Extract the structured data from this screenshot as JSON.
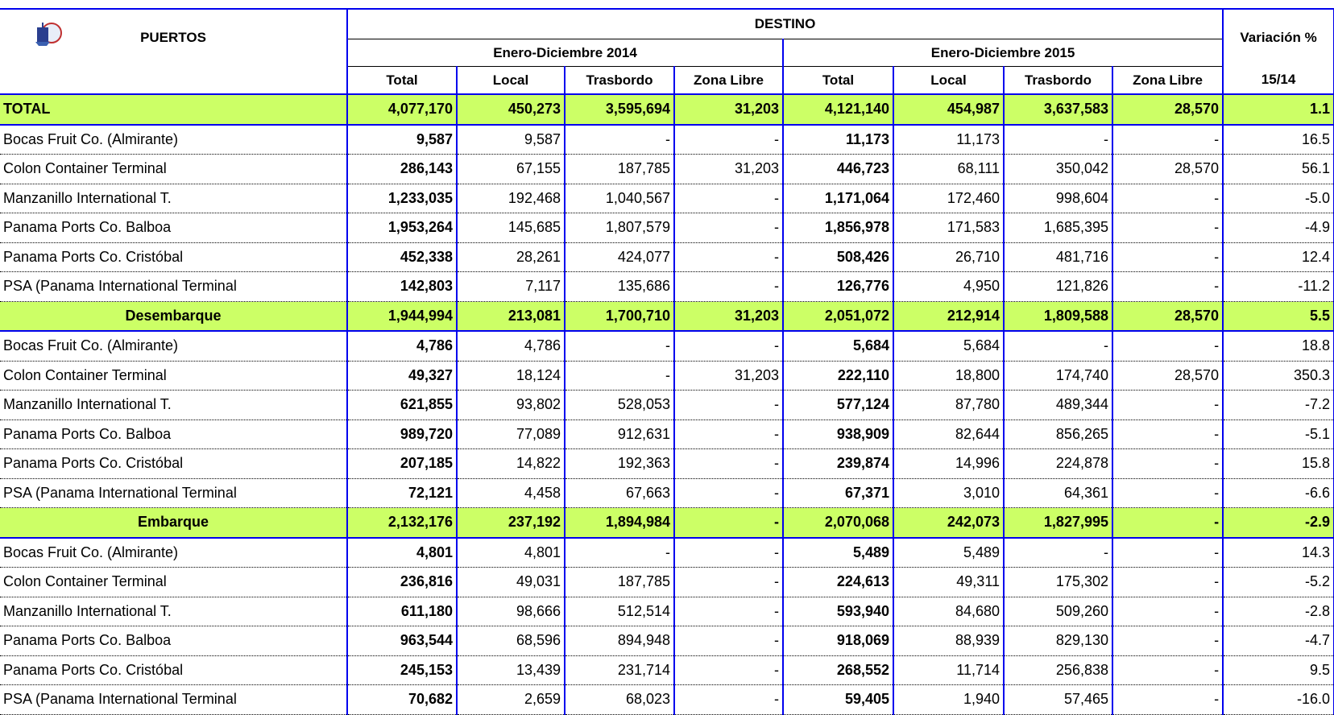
{
  "header": {
    "puertos": "PUERTOS",
    "destino": "DESTINO",
    "period_a": "Enero-Diciembre 2014",
    "period_b": "Enero-Diciembre 2015",
    "variacion": "Variación %",
    "variacion_sub": "15/14",
    "columns": [
      "Total",
      "Local",
      "Trasbordo",
      "Zona Libre"
    ]
  },
  "sections": [
    {
      "total": {
        "label": "TOTAL",
        "cells": [
          "4,077,170",
          "450,273",
          "3,595,694",
          "31,203",
          "4,121,140",
          "454,987",
          "3,637,583",
          "28,570",
          "1.1"
        ]
      },
      "rows": [
        {
          "label": "Bocas Fruit Co. (Almirante)",
          "cells": [
            "9,587",
            "9,587",
            "-",
            "-",
            "11,173",
            "11,173",
            "-",
            "-",
            "16.5"
          ]
        },
        {
          "label": "Colon Container Terminal",
          "cells": [
            "286,143",
            "67,155",
            "187,785",
            "31,203",
            "446,723",
            "68,111",
            "350,042",
            "28,570",
            "56.1"
          ]
        },
        {
          "label": "Manzanillo International T.",
          "cells": [
            "1,233,035",
            "192,468",
            "1,040,567",
            "-",
            "1,171,064",
            "172,460",
            "998,604",
            "-",
            "-5.0"
          ]
        },
        {
          "label": "Panama Ports Co. Balboa",
          "cells": [
            "1,953,264",
            "145,685",
            "1,807,579",
            "-",
            "1,856,978",
            "171,583",
            "1,685,395",
            "-",
            "-4.9"
          ]
        },
        {
          "label": "Panama Ports Co. Cristóbal",
          "cells": [
            "452,338",
            "28,261",
            "424,077",
            "-",
            "508,426",
            "26,710",
            "481,716",
            "-",
            "12.4"
          ]
        },
        {
          "label": "PSA (Panama International Terminal",
          "cells": [
            "142,803",
            "7,117",
            "135,686",
            "-",
            "126,776",
            "4,950",
            "121,826",
            "-",
            "-11.2"
          ]
        }
      ]
    },
    {
      "total": {
        "label": "Desembarque",
        "cells": [
          "1,944,994",
          "213,081",
          "1,700,710",
          "31,203",
          "2,051,072",
          "212,914",
          "1,809,588",
          "28,570",
          "5.5"
        ]
      },
      "rows": [
        {
          "label": "Bocas Fruit Co. (Almirante)",
          "cells": [
            "4,786",
            "4,786",
            "-",
            "-",
            "5,684",
            "5,684",
            "-",
            "-",
            "18.8"
          ]
        },
        {
          "label": "Colon Container Terminal",
          "cells": [
            "49,327",
            "18,124",
            "-",
            "31,203",
            "222,110",
            "18,800",
            "174,740",
            "28,570",
            "350.3"
          ]
        },
        {
          "label": "Manzanillo International T.",
          "cells": [
            "621,855",
            "93,802",
            "528,053",
            "-",
            "577,124",
            "87,780",
            "489,344",
            "-",
            "-7.2"
          ]
        },
        {
          "label": "Panama Ports Co. Balboa",
          "cells": [
            "989,720",
            "77,089",
            "912,631",
            "-",
            "938,909",
            "82,644",
            "856,265",
            "-",
            "-5.1"
          ]
        },
        {
          "label": "Panama Ports Co. Cristóbal",
          "cells": [
            "207,185",
            "14,822",
            "192,363",
            "-",
            "239,874",
            "14,996",
            "224,878",
            "-",
            "15.8"
          ]
        },
        {
          "label": "PSA (Panama International Terminal",
          "cells": [
            "72,121",
            "4,458",
            "67,663",
            "-",
            "67,371",
            "3,010",
            "64,361",
            "-",
            "-6.6"
          ]
        }
      ]
    },
    {
      "total": {
        "label": "Embarque",
        "cells": [
          "2,132,176",
          "237,192",
          "1,894,984",
          "-",
          "2,070,068",
          "242,073",
          "1,827,995",
          "-",
          "-2.9"
        ]
      },
      "rows": [
        {
          "label": "Bocas Fruit Co. (Almirante)",
          "cells": [
            "4,801",
            "4,801",
            "-",
            "-",
            "5,489",
            "5,489",
            "-",
            "-",
            "14.3"
          ]
        },
        {
          "label": "Colon Container Terminal",
          "cells": [
            "236,816",
            "49,031",
            "187,785",
            "-",
            "224,613",
            "49,311",
            "175,302",
            "-",
            "-5.2"
          ]
        },
        {
          "label": "Manzanillo International T.",
          "cells": [
            "611,180",
            "98,666",
            "512,514",
            "-",
            "593,940",
            "84,680",
            "509,260",
            "-",
            "-2.8"
          ]
        },
        {
          "label": "Panama Ports Co. Balboa",
          "cells": [
            "963,544",
            "68,596",
            "894,948",
            "-",
            "918,069",
            "88,939",
            "829,130",
            "-",
            "-4.7"
          ]
        },
        {
          "label": "Panama Ports Co. Cristóbal",
          "cells": [
            "245,153",
            "13,439",
            "231,714",
            "-",
            "268,552",
            "11,714",
            "256,838",
            "-",
            "9.5"
          ]
        },
        {
          "label": "PSA (Panama International Terminal",
          "cells": [
            "70,682",
            "2,659",
            "68,023",
            "-",
            "59,405",
            "1,940",
            "57,465",
            "-",
            "-16.0"
          ]
        }
      ]
    }
  ]
}
